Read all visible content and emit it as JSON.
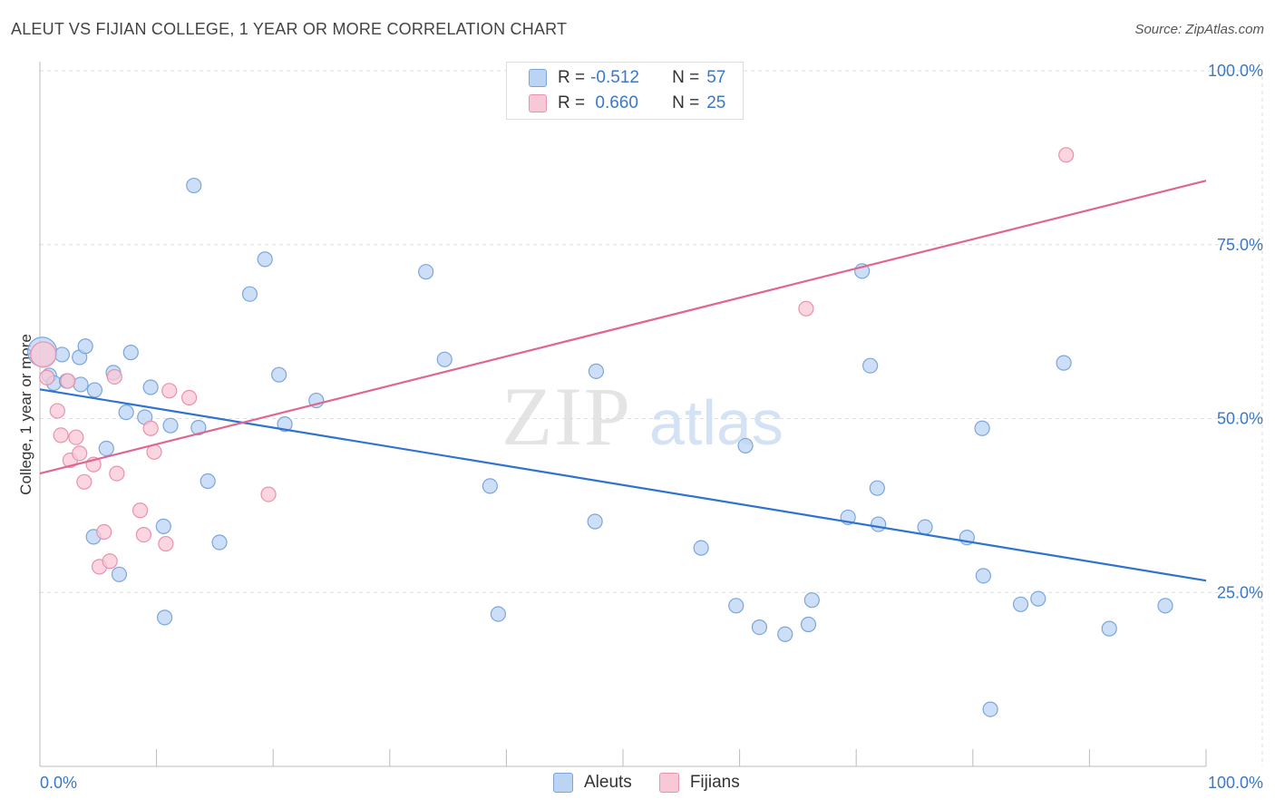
{
  "chart_data": {
    "type": "scatter",
    "title": "ALEUT VS FIJIAN COLLEGE, 1 YEAR OR MORE CORRELATION CHART",
    "source": "Source: ZipAtlas.com",
    "ylabel": "College, 1 year or more",
    "xlabel": "",
    "xlim": [
      0,
      100
    ],
    "ylim": [
      0,
      100
    ],
    "x_tick_labels": [
      "0.0%",
      "100.0%"
    ],
    "y_ticks": [
      25,
      50,
      75,
      100
    ],
    "y_tick_labels": [
      "25.0%",
      "50.0%",
      "75.0%",
      "100.0%"
    ],
    "grid": true,
    "legend_position": "bottom-center",
    "watermark": "ZIPatlas",
    "colors": {
      "aleuts_fill": "#bcd4f4",
      "aleuts_stroke": "#7aa6dd",
      "aleuts_line": "#2f73d0",
      "fijians_fill": "#f9c8d6",
      "fijians_stroke": "#e892ae",
      "fijians_line": "#e06690",
      "tick_label": "#3a78c8"
    },
    "stats": [
      {
        "series": "Aleuts",
        "r_label": "R =",
        "r_value": "-0.512",
        "n_label": "N =",
        "n_value": "57"
      },
      {
        "series": "Fijians",
        "r_label": "R =",
        "r_value": " 0.660",
        "n_label": "N =",
        "n_value": "25"
      }
    ],
    "series": [
      {
        "name": "Aleuts",
        "trend": {
          "x": [
            0,
            100
          ],
          "y": [
            54.2,
            26.7
          ]
        },
        "points": [
          {
            "x": 0.2,
            "y": 59.6,
            "r": 16
          },
          {
            "x": 0.8,
            "y": 56.2
          },
          {
            "x": 1.2,
            "y": 55.1
          },
          {
            "x": 1.9,
            "y": 59.2
          },
          {
            "x": 2.3,
            "y": 55.4
          },
          {
            "x": 3.4,
            "y": 58.8
          },
          {
            "x": 3.5,
            "y": 54.9
          },
          {
            "x": 3.9,
            "y": 60.4
          },
          {
            "x": 4.6,
            "y": 33.0
          },
          {
            "x": 4.7,
            "y": 54.1
          },
          {
            "x": 5.7,
            "y": 45.7
          },
          {
            "x": 6.3,
            "y": 56.6
          },
          {
            "x": 6.8,
            "y": 27.6
          },
          {
            "x": 7.4,
            "y": 50.9
          },
          {
            "x": 7.8,
            "y": 59.5
          },
          {
            "x": 9.0,
            "y": 50.2
          },
          {
            "x": 9.5,
            "y": 54.5
          },
          {
            "x": 10.6,
            "y": 34.5
          },
          {
            "x": 10.7,
            "y": 21.4
          },
          {
            "x": 11.2,
            "y": 49.0
          },
          {
            "x": 13.2,
            "y": 83.5
          },
          {
            "x": 13.6,
            "y": 48.7
          },
          {
            "x": 14.4,
            "y": 41.0
          },
          {
            "x": 15.4,
            "y": 32.2
          },
          {
            "x": 18.0,
            "y": 67.9
          },
          {
            "x": 19.3,
            "y": 72.9
          },
          {
            "x": 20.5,
            "y": 56.3
          },
          {
            "x": 21.0,
            "y": 49.2
          },
          {
            "x": 23.7,
            "y": 52.6
          },
          {
            "x": 33.1,
            "y": 71.1
          },
          {
            "x": 34.7,
            "y": 58.5
          },
          {
            "x": 38.6,
            "y": 40.3
          },
          {
            "x": 39.3,
            "y": 21.9
          },
          {
            "x": 47.6,
            "y": 35.2
          },
          {
            "x": 47.7,
            "y": 56.8
          },
          {
            "x": 56.7,
            "y": 31.4
          },
          {
            "x": 59.7,
            "y": 23.1
          },
          {
            "x": 60.5,
            "y": 46.1
          },
          {
            "x": 61.7,
            "y": 20.0
          },
          {
            "x": 63.9,
            "y": 19.0
          },
          {
            "x": 65.9,
            "y": 20.4
          },
          {
            "x": 66.2,
            "y": 23.9
          },
          {
            "x": 69.3,
            "y": 35.8
          },
          {
            "x": 70.5,
            "y": 71.2
          },
          {
            "x": 71.2,
            "y": 57.6
          },
          {
            "x": 71.8,
            "y": 40.0
          },
          {
            "x": 71.9,
            "y": 34.8
          },
          {
            "x": 75.9,
            "y": 34.4
          },
          {
            "x": 79.5,
            "y": 32.9
          },
          {
            "x": 80.8,
            "y": 48.6
          },
          {
            "x": 80.9,
            "y": 27.4
          },
          {
            "x": 81.5,
            "y": 8.2
          },
          {
            "x": 84.1,
            "y": 23.3
          },
          {
            "x": 85.6,
            "y": 24.1
          },
          {
            "x": 87.8,
            "y": 58.0
          },
          {
            "x": 91.7,
            "y": 19.8
          },
          {
            "x": 96.5,
            "y": 23.1
          }
        ]
      },
      {
        "name": "Fijians",
        "trend": {
          "x": [
            0,
            100
          ],
          "y": [
            42.1,
            84.2
          ]
        },
        "points": [
          {
            "x": 0.3,
            "y": 59.2,
            "r": 14
          },
          {
            "x": 0.6,
            "y": 55.9
          },
          {
            "x": 1.5,
            "y": 51.1
          },
          {
            "x": 1.8,
            "y": 47.6
          },
          {
            "x": 2.4,
            "y": 55.4
          },
          {
            "x": 2.6,
            "y": 44.0
          },
          {
            "x": 3.1,
            "y": 47.3
          },
          {
            "x": 3.4,
            "y": 45.0
          },
          {
            "x": 3.8,
            "y": 40.9
          },
          {
            "x": 4.6,
            "y": 43.4
          },
          {
            "x": 5.5,
            "y": 33.7
          },
          {
            "x": 5.1,
            "y": 28.7
          },
          {
            "x": 6.0,
            "y": 29.5
          },
          {
            "x": 6.4,
            "y": 56.0
          },
          {
            "x": 6.6,
            "y": 42.1
          },
          {
            "x": 8.6,
            "y": 36.8
          },
          {
            "x": 8.9,
            "y": 33.3
          },
          {
            "x": 9.5,
            "y": 48.6
          },
          {
            "x": 9.8,
            "y": 45.2
          },
          {
            "x": 10.8,
            "y": 32.0
          },
          {
            "x": 11.1,
            "y": 54.0
          },
          {
            "x": 12.8,
            "y": 53.0
          },
          {
            "x": 19.6,
            "y": 39.1
          },
          {
            "x": 65.7,
            "y": 65.8
          },
          {
            "x": 88.0,
            "y": 87.9
          }
        ]
      }
    ]
  }
}
